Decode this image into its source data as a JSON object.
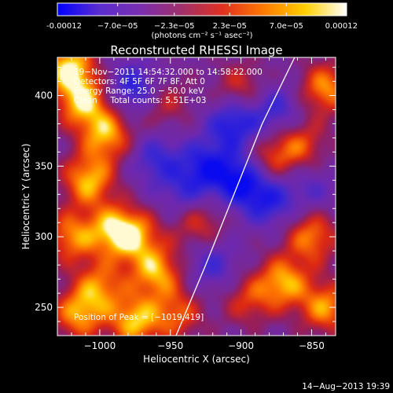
{
  "chart_data": {
    "type": "heatmap",
    "title": "Reconstructed RHESSI Image",
    "xlabel": "Heliocentric X (arcsec)",
    "ylabel": "Heliocentric Y (arcsec)",
    "xlim": [
      -1030,
      -833
    ],
    "ylim": [
      230,
      427
    ],
    "xticks": [
      -1000,
      -950,
      -900,
      -850
    ],
    "xtick_labels": [
      "−1000",
      "−950",
      "−900",
      "−850"
    ],
    "yticks": [
      250,
      300,
      350,
      400
    ],
    "ytick_labels": [
      "250",
      "300",
      "350",
      "400"
    ],
    "colorbar": {
      "range": [
        -0.00012,
        0.00012
      ],
      "ticks": [
        -0.00012,
        -7e-05,
        -2.3e-05,
        2.3e-05,
        7e-05,
        0.00012
      ],
      "tick_labels": [
        "-0.00012",
        "−7.0e−05",
        "−2.3e−05",
        "2.3e−05",
        "7.0e−05",
        "0.00012"
      ],
      "unit_label": "(photons cm⁻² s⁻¹ asec⁻²)",
      "colors": [
        "#0000ff",
        "#5a2dd0",
        "#7a2eb0",
        "#a0306a",
        "#e03020",
        "#ff7a00",
        "#ffd000",
        "#ffffff"
      ]
    },
    "annotations": [
      "19−Nov−2011 14:54:32.000 to 14:58:22.000",
      "Detectors: 4F 5F 6F 7F 8F, Att 0",
      "Energy Range: 25.0 − 50.0 keV",
      "Clean     Total counts: 5.51E+03"
    ],
    "peak_label": "Position of Peak = [−1019,419]",
    "peak": [
      -1019,
      419
    ],
    "limb_points": [
      [
        -946,
        230
      ],
      [
        -925,
        280
      ],
      [
        -905,
        330
      ],
      [
        -885,
        380
      ],
      [
        -862,
        427
      ]
    ],
    "blobs": [
      {
        "x": -1012,
        "y": 395,
        "v": 0.9
      },
      {
        "x": -1022,
        "y": 420,
        "v": 1.0
      },
      {
        "x": -995,
        "y": 372,
        "v": 0.85
      },
      {
        "x": -1008,
        "y": 340,
        "v": 0.9
      },
      {
        "x": -990,
        "y": 305,
        "v": 0.8
      },
      {
        "x": -1020,
        "y": 300,
        "v": 0.75
      },
      {
        "x": -975,
        "y": 300,
        "v": 0.7
      },
      {
        "x": -960,
        "y": 275,
        "v": 0.85
      },
      {
        "x": -1000,
        "y": 265,
        "v": 0.7
      },
      {
        "x": -975,
        "y": 240,
        "v": 0.9
      },
      {
        "x": -1015,
        "y": 245,
        "v": 0.8
      },
      {
        "x": -945,
        "y": 245,
        "v": 0.6
      },
      {
        "x": -930,
        "y": 310,
        "v": 0.55
      },
      {
        "x": -955,
        "y": 395,
        "v": 0.45
      },
      {
        "x": -900,
        "y": 405,
        "v": 0.5
      },
      {
        "x": -880,
        "y": 355,
        "v": 0.55
      },
      {
        "x": -858,
        "y": 365,
        "v": 0.6
      },
      {
        "x": -840,
        "y": 405,
        "v": 0.8
      },
      {
        "x": -850,
        "y": 300,
        "v": 0.75
      },
      {
        "x": -870,
        "y": 268,
        "v": 0.85
      },
      {
        "x": -840,
        "y": 250,
        "v": 0.8
      },
      {
        "x": -895,
        "y": 255,
        "v": 0.5
      },
      {
        "x": -975,
        "y": 405,
        "v": -0.7
      },
      {
        "x": -960,
        "y": 355,
        "v": -0.55
      },
      {
        "x": -905,
        "y": 380,
        "v": -0.8
      },
      {
        "x": -900,
        "y": 340,
        "v": -0.9
      },
      {
        "x": -925,
        "y": 350,
        "v": -0.7
      },
      {
        "x": -880,
        "y": 325,
        "v": -0.65
      },
      {
        "x": -875,
        "y": 390,
        "v": -0.55
      },
      {
        "x": -920,
        "y": 280,
        "v": -0.5
      },
      {
        "x": -940,
        "y": 330,
        "v": -0.45
      },
      {
        "x": -850,
        "y": 335,
        "v": -0.35
      }
    ]
  },
  "footer": {
    "timestamp": "14−Aug−2013 19:39"
  }
}
